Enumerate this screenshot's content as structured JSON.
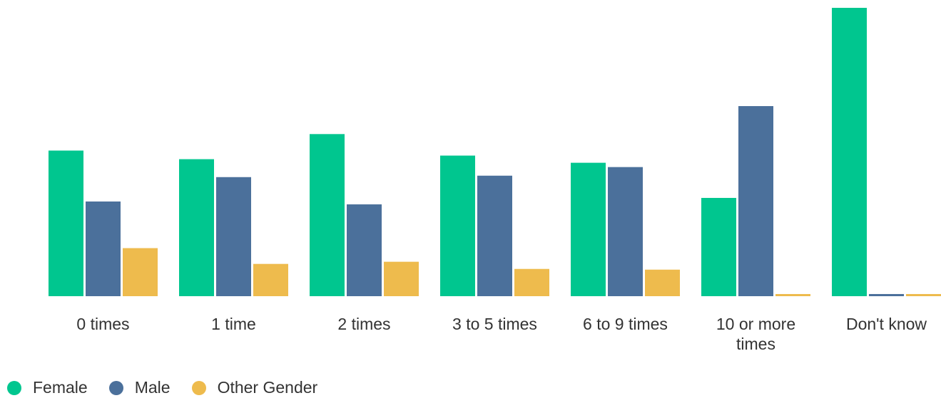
{
  "chart_data": {
    "type": "bar",
    "title": "",
    "xlabel": "",
    "ylabel": "",
    "categories": [
      "0 times",
      "1 time",
      "2 times",
      "3 to 5 times",
      "6 to 9 times",
      "10 or more times",
      "Don't know"
    ],
    "series": [
      {
        "name": "Female",
        "color": "#00c68f",
        "values": [
          20.3,
          19.1,
          22.6,
          19.6,
          18.6,
          13.7,
          40.2
        ]
      },
      {
        "name": "Male",
        "color": "#4b709b",
        "values": [
          13.2,
          16.6,
          12.8,
          16.8,
          18.0,
          26.5,
          0.3
        ]
      },
      {
        "name": "Other Gender",
        "color": "#eebb4d",
        "values": [
          6.7,
          4.5,
          4.8,
          3.8,
          3.7,
          0.3,
          0.3
        ]
      }
    ],
    "ylim": [
      0,
      40.2
    ],
    "grid": false,
    "legend_position": "bottom-left"
  }
}
